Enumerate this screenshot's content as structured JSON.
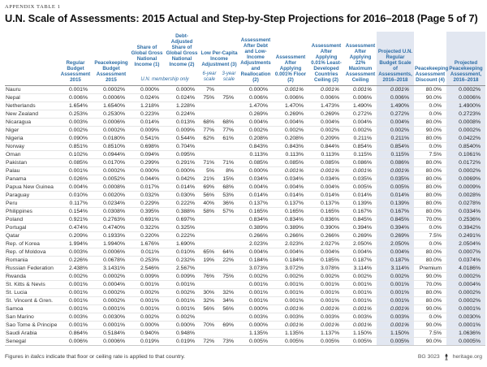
{
  "page": {
    "eyebrow": "APPENDIX TABLE 1",
    "title": "U.N. Scale of Assessments: 2015 Actual and Step-by-Step Projections for 2016–2018 (Page 5 of 7)"
  },
  "colors": {
    "header_blue": "#2d6da6",
    "highlight_column": "#e2e7f1"
  },
  "table": {
    "header": [
      "Regular Budget Assess­ment 2015",
      "Peacekeeping Budget Assessment 2015",
      "Share of Global Gross National Income (1)",
      "Debt-Adjusted Share of Global Gross National Income (2)",
      "Low Per-Capita Income Adjustment (3)",
      "Assessment After Debt and Low-Income Adjustments and Reallocation (2)",
      "Assessment After Applying 0.001% Floor (2)",
      "Assessment After Applying 0.01% Least-Developed Countries Ceiling (2)",
      "Assessment After Applying 22% Maximum Assessment Ceiling",
      "Projected U.N. Regular Budget Scale of Assessments, 2016–2018",
      "Peacekeeping Assessment Discount (4)",
      "Projected Peacekeeping Assessment, 2016–2018"
    ],
    "subheaders": {
      "membership": "U.N. membership only",
      "six_year": "6-year scale",
      "three_year": "3-year scale"
    },
    "column_keys": [
      "regular-budget-2015",
      "peacekeeping-budget-2015",
      "share-gni",
      "debt-adjusted-share-gni",
      "low-income-adj-6yr",
      "low-income-adj-3yr",
      "after-debt-low-income",
      "after-floor",
      "after-ldc-ceiling",
      "after-22-ceiling",
      "projected-regular-2016-2018",
      "peacekeeping-discount",
      "projected-peacekeeping-2016-2018"
    ],
    "highlight_value_columns": [
      10,
      12
    ],
    "rows": [
      {
        "country": "Nauru",
        "values": [
          "0.001%",
          "0.0002%",
          "0.000%",
          "0.000%",
          "7%",
          "",
          "0.000%",
          "0.001%",
          "0.001%",
          "0.001%",
          "0.001%",
          "80.0%",
          "0.0002%"
        ],
        "italic": [
          7,
          8,
          9,
          10
        ]
      },
      {
        "country": "Nepal",
        "values": [
          "0.006%",
          "0.0006%",
          "0.024%",
          "0.024%",
          "75%",
          "75%",
          "0.006%",
          "0.006%",
          "0.006%",
          "0.006%",
          "0.006%",
          "90.0%",
          "0.0006%"
        ],
        "italic": []
      },
      {
        "country": "Netherlands",
        "values": [
          "1.654%",
          "1.6540%",
          "1.218%",
          "1.228%",
          "",
          "",
          "1.470%",
          "1.470%",
          "1.473%",
          "1.490%",
          "1.490%",
          "0.0%",
          "1.4900%"
        ],
        "italic": []
      },
      {
        "country": "New Zealand",
        "values": [
          "0.253%",
          "0.2530%",
          "0.223%",
          "0.224%",
          "",
          "",
          "0.269%",
          "0.269%",
          "0.269%",
          "0.272%",
          "0.272%",
          "0.0%",
          "0.2723%"
        ],
        "italic": []
      },
      {
        "country": "Nicaragua",
        "values": [
          "0.003%",
          "0.0006%",
          "0.014%",
          "0.013%",
          "68%",
          "68%",
          "0.004%",
          "0.004%",
          "0.004%",
          "0.004%",
          "0.004%",
          "80.0%",
          "0.0008%"
        ],
        "italic": []
      },
      {
        "country": "Niger",
        "values": [
          "0.002%",
          "0.0002%",
          "0.009%",
          "0.009%",
          "77%",
          "77%",
          "0.002%",
          "0.002%",
          "0.002%",
          "0.002%",
          "0.002%",
          "90.0%",
          "0.0002%"
        ],
        "italic": []
      },
      {
        "country": "Nigeria",
        "values": [
          "0.090%",
          "0.0180%",
          "0.541%",
          "0.544%",
          "62%",
          "61%",
          "0.208%",
          "0.208%",
          "0.209%",
          "0.211%",
          "0.211%",
          "80.0%",
          "0.0422%"
        ],
        "italic": []
      },
      {
        "country": "Norway",
        "values": [
          "0.851%",
          "0.8510%",
          "0.698%",
          "0.704%",
          "",
          "",
          "0.843%",
          "0.843%",
          "0.844%",
          "0.854%",
          "0.854%",
          "0.0%",
          "0.8540%"
        ],
        "italic": []
      },
      {
        "country": "Oman",
        "values": [
          "0.102%",
          "0.0944%",
          "0.094%",
          "0.095%",
          "",
          "",
          "0.113%",
          "0.113%",
          "0.113%",
          "0.115%",
          "0.115%",
          "7.5%",
          "0.1061%"
        ],
        "italic": []
      },
      {
        "country": "Pakistan",
        "values": [
          "0.085%",
          "0.0170%",
          "0.299%",
          "0.291%",
          "71%",
          "71%",
          "0.085%",
          "0.085%",
          "0.085%",
          "0.086%",
          "0.086%",
          "80.0%",
          "0.0172%"
        ],
        "italic": []
      },
      {
        "country": "Palau",
        "values": [
          "0.001%",
          "0.0002%",
          "0.000%",
          "0.000%",
          "5%",
          "8%",
          "0.000%",
          "0.001%",
          "0.001%",
          "0.001%",
          "0.001%",
          "80.0%",
          "0.0002%"
        ],
        "italic": [
          7,
          8,
          9,
          10
        ]
      },
      {
        "country": "Panama",
        "values": [
          "0.026%",
          "0.0052%",
          "0.044%",
          "0.042%",
          "21%",
          "15%",
          "0.034%",
          "0.034%",
          "0.034%",
          "0.035%",
          "0.035%",
          "80.0%",
          "0.0069%"
        ],
        "italic": []
      },
      {
        "country": "Papua New Guinea",
        "values": [
          "0.004%",
          "0.0008%",
          "0.017%",
          "0.014%",
          "69%",
          "68%",
          "0.004%",
          "0.004%",
          "0.004%",
          "0.005%",
          "0.005%",
          "80.0%",
          "0.0009%"
        ],
        "italic": []
      },
      {
        "country": "Paraguay",
        "values": [
          "0.010%",
          "0.0020%",
          "0.032%",
          "0.030%",
          "56%",
          "53%",
          "0.014%",
          "0.014%",
          "0.014%",
          "0.014%",
          "0.014%",
          "80.0%",
          "0.0028%"
        ],
        "italic": []
      },
      {
        "country": "Peru",
        "values": [
          "0.117%",
          "0.0234%",
          "0.229%",
          "0.222%",
          "40%",
          "36%",
          "0.137%",
          "0.137%",
          "0.137%",
          "0.139%",
          "0.139%",
          "80.0%",
          "0.0278%"
        ],
        "italic": []
      },
      {
        "country": "Philippines",
        "values": [
          "0.154%",
          "0.0308%",
          "0.395%",
          "0.388%",
          "58%",
          "57%",
          "0.165%",
          "0.165%",
          "0.165%",
          "0.167%",
          "0.167%",
          "80.0%",
          "0.0334%"
        ],
        "italic": []
      },
      {
        "country": "Poland",
        "values": [
          "0.921%",
          "0.2763%",
          "0.691%",
          "0.697%",
          "",
          "",
          "0.834%",
          "0.834%",
          "0.836%",
          "0.845%",
          "0.845%",
          "70.0%",
          "0.2536%"
        ],
        "italic": []
      },
      {
        "country": "Portugal",
        "values": [
          "0.474%",
          "0.4740%",
          "0.322%",
          "0.325%",
          "",
          "",
          "0.389%",
          "0.389%",
          "0.390%",
          "0.394%",
          "0.394%",
          "0.0%",
          "0.3942%"
        ],
        "italic": []
      },
      {
        "country": "Qatar",
        "values": [
          "0.209%",
          "0.1933%",
          "0.220%",
          "0.222%",
          "",
          "",
          "0.266%",
          "0.266%",
          "0.266%",
          "0.269%",
          "0.269%",
          "7.5%",
          "0.2491%"
        ],
        "italic": []
      },
      {
        "country": "Rep. of Korea",
        "values": [
          "1.994%",
          "1.9940%",
          "1.676%",
          "1.690%",
          "",
          "",
          "2.023%",
          "2.023%",
          "2.027%",
          "2.050%",
          "2.050%",
          "0.0%",
          "2.0504%"
        ],
        "italic": []
      },
      {
        "country": "Rep. of Moldova",
        "values": [
          "0.003%",
          "0.0006%",
          "0.011%",
          "0.010%",
          "65%",
          "64%",
          "0.004%",
          "0.004%",
          "0.004%",
          "0.004%",
          "0.004%",
          "80.0%",
          "0.0007%"
        ],
        "italic": []
      },
      {
        "country": "Romania",
        "values": [
          "0.226%",
          "0.0678%",
          "0.253%",
          "0.232%",
          "19%",
          "22%",
          "0.184%",
          "0.184%",
          "0.185%",
          "0.187%",
          "0.187%",
          "80.0%",
          "0.0374%"
        ],
        "italic": []
      },
      {
        "country": "Russian Federation",
        "values": [
          "2.438%",
          "3.1431%",
          "2.546%",
          "2.567%",
          "",
          "",
          "3.073%",
          "3.072%",
          "3.078%",
          "3.114%",
          "3.114%",
          "Premium",
          "4.0186%"
        ],
        "italic": []
      },
      {
        "country": "Rwanda",
        "values": [
          "0.002%",
          "0.0002%",
          "0.009%",
          "0.009%",
          "76%",
          "75%",
          "0.002%",
          "0.002%",
          "0.002%",
          "0.002%",
          "0.002%",
          "90.0%",
          "0.0002%"
        ],
        "italic": []
      },
      {
        "country": "St. Kitts & Nevis",
        "values": [
          "0.001%",
          "0.0004%",
          "0.001%",
          "0.001%",
          "",
          "",
          "0.001%",
          "0.001%",
          "0.001%",
          "0.001%",
          "0.001%",
          "70.0%",
          "0.0004%"
        ],
        "italic": []
      },
      {
        "country": "St. Lucia",
        "values": [
          "0.001%",
          "0.0002%",
          "0.002%",
          "0.002%",
          "30%",
          "32%",
          "0.001%",
          "0.001%",
          "0.001%",
          "0.001%",
          "0.001%",
          "80.0%",
          "0.0002%"
        ],
        "italic": []
      },
      {
        "country": "St. Vincent & Gren.",
        "values": [
          "0.001%",
          "0.0002%",
          "0.001%",
          "0.001%",
          "32%",
          "34%",
          "0.001%",
          "0.001%",
          "0.001%",
          "0.001%",
          "0.001%",
          "80.0%",
          "0.0002%"
        ],
        "italic": []
      },
      {
        "country": "Samoa",
        "values": [
          "0.001%",
          "0.0001%",
          "0.001%",
          "0.001%",
          "56%",
          "56%",
          "0.000%",
          "0.001%",
          "0.001%",
          "0.001%",
          "0.001%",
          "90.0%",
          "0.0001%"
        ],
        "italic": [
          7,
          8,
          9,
          10
        ]
      },
      {
        "country": "San Marino",
        "values": [
          "0.003%",
          "0.0030%",
          "0.002%",
          "0.002%",
          "",
          "",
          "0.003%",
          "0.003%",
          "0.003%",
          "0.003%",
          "0.003%",
          "0.0%",
          "0.0030%"
        ],
        "italic": []
      },
      {
        "country": "Sao Tome & Principe",
        "values": [
          "0.001%",
          "0.0001%",
          "0.000%",
          "0.000%",
          "70%",
          "69%",
          "0.000%",
          "0.001%",
          "0.001%",
          "0.001%",
          "0.001%",
          "90.0%",
          "0.0001%"
        ],
        "italic": [
          7,
          8,
          9,
          10
        ]
      },
      {
        "country": "Saudi Arabia",
        "values": [
          "0.864%",
          "0.5184%",
          "0.940%",
          "0.948%",
          "",
          "",
          "1.135%",
          "1.135%",
          "1.137%",
          "1.150%",
          "1.150%",
          "7.5%",
          "1.0636%"
        ],
        "italic": []
      },
      {
        "country": "Senegal",
        "values": [
          "0.006%",
          "0.0006%",
          "0.019%",
          "0.019%",
          "72%",
          "73%",
          "0.005%",
          "0.005%",
          "0.005%",
          "0.005%",
          "0.005%",
          "90.0%",
          "0.0005%"
        ],
        "italic": []
      }
    ]
  },
  "footer": {
    "note_prefix": "Figures in ",
    "note_italic": "italics",
    "note_suffix": " indicate that floor or ceiling rate is applied to that country.",
    "doc_id": "BG 3023",
    "site": "heritage.org"
  }
}
